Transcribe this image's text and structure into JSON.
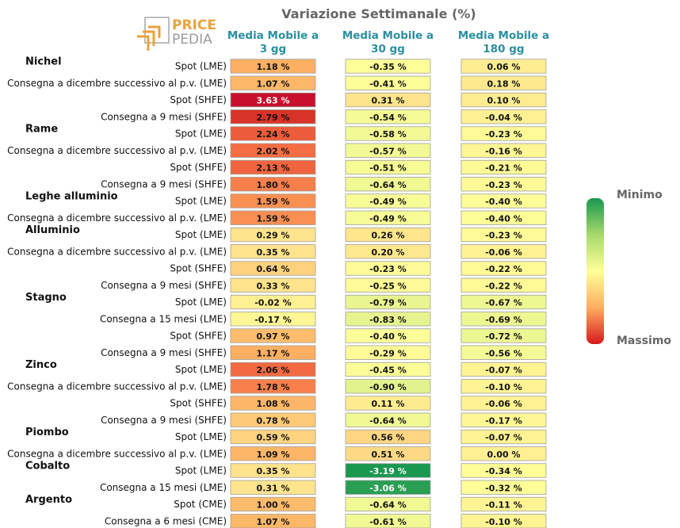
{
  "logo": {
    "line1": "PRICE",
    "line2": "PEDIA"
  },
  "chart_data": {
    "type": "heatmap",
    "title": "Variazione Settimanale (%)",
    "columns": [
      "Media Mobile a 3 gg",
      "Media Mobile a 30 gg",
      "Media Mobile a 180 gg"
    ],
    "colorbar": {
      "top_label": "Minimo",
      "bottom_label": "Massimo"
    },
    "groups": [
      {
        "name": "Nichel",
        "rows": [
          {
            "label": "Spot (LME)",
            "values": [
              1.18,
              -0.35,
              0.06
            ],
            "text": [
              "1.18 %",
              "-0.35 %",
              "0.06 %"
            ]
          },
          {
            "label": "Consegna a dicembre successivo al p.v. (LME)",
            "values": [
              1.07,
              -0.41,
              0.18
            ],
            "text": [
              "1.07 %",
              "-0.41 %",
              "0.18 %"
            ]
          },
          {
            "label": "Spot (SHFE)",
            "values": [
              3.63,
              0.31,
              0.1
            ],
            "text": [
              "3.63 %",
              "0.31 %",
              "0.10 %"
            ]
          },
          {
            "label": "Consegna a 9 mesi (SHFE)",
            "values": [
              2.79,
              -0.54,
              -0.04
            ],
            "text": [
              "2.79 %",
              "-0.54 %",
              "-0.04 %"
            ]
          }
        ]
      },
      {
        "name": "Rame",
        "rows": [
          {
            "label": "Spot (LME)",
            "values": [
              2.24,
              -0.58,
              -0.23
            ],
            "text": [
              "2.24 %",
              "-0.58 %",
              "-0.23 %"
            ]
          },
          {
            "label": "Consegna a dicembre successivo al p.v. (LME)",
            "values": [
              2.02,
              -0.57,
              -0.16
            ],
            "text": [
              "2.02 %",
              "-0.57 %",
              "-0.16 %"
            ]
          },
          {
            "label": "Spot (SHFE)",
            "values": [
              2.13,
              -0.51,
              -0.21
            ],
            "text": [
              "2.13 %",
              "-0.51 %",
              "-0.21 %"
            ]
          },
          {
            "label": "Consegna a 9 mesi (SHFE)",
            "values": [
              1.8,
              -0.64,
              -0.23
            ],
            "text": [
              "1.80 %",
              "-0.64 %",
              "-0.23 %"
            ]
          }
        ]
      },
      {
        "name": "Leghe alluminio",
        "rows": [
          {
            "label": "Spot (LME)",
            "values": [
              1.59,
              -0.49,
              -0.4
            ],
            "text": [
              "1.59 %",
              "-0.49 %",
              "-0.40 %"
            ]
          },
          {
            "label": "Consegna a dicembre successivo al p.v. (LME)",
            "values": [
              1.59,
              -0.49,
              -0.4
            ],
            "text": [
              "1.59 %",
              "-0.49 %",
              "-0.40 %"
            ]
          }
        ]
      },
      {
        "name": "Alluminio",
        "rows": [
          {
            "label": "Spot (LME)",
            "values": [
              0.29,
              0.26,
              -0.23
            ],
            "text": [
              "0.29 %",
              "0.26 %",
              "-0.23 %"
            ]
          },
          {
            "label": "Consegna a dicembre successivo al p.v. (LME)",
            "values": [
              0.35,
              0.2,
              -0.06
            ],
            "text": [
              "0.35 %",
              "0.20 %",
              "-0.06 %"
            ]
          },
          {
            "label": "Spot (SHFE)",
            "values": [
              0.64,
              -0.23,
              -0.22
            ],
            "text": [
              "0.64 %",
              "-0.23 %",
              "-0.22 %"
            ]
          },
          {
            "label": "Consegna a 9 mesi (SHFE)",
            "values": [
              0.33,
              -0.25,
              -0.22
            ],
            "text": [
              "0.33 %",
              "-0.25 %",
              "-0.22 %"
            ]
          }
        ]
      },
      {
        "name": "Stagno",
        "rows": [
          {
            "label": "Spot (LME)",
            "values": [
              -0.02,
              -0.79,
              -0.67
            ],
            "text": [
              "-0.02 %",
              "-0.79 %",
              "-0.67 %"
            ]
          },
          {
            "label": "Consegna a 15 mesi (LME)",
            "values": [
              -0.17,
              -0.83,
              -0.69
            ],
            "text": [
              "-0.17 %",
              "-0.83 %",
              "-0.69 %"
            ]
          },
          {
            "label": "Spot (SHFE)",
            "values": [
              0.97,
              -0.4,
              -0.72
            ],
            "text": [
              "0.97 %",
              "-0.40 %",
              "-0.72 %"
            ]
          },
          {
            "label": "Consegna a 9 mesi (SHFE)",
            "values": [
              1.17,
              -0.29,
              -0.56
            ],
            "text": [
              "1.17 %",
              "-0.29 %",
              "-0.56 %"
            ]
          }
        ]
      },
      {
        "name": "Zinco",
        "rows": [
          {
            "label": "Spot (LME)",
            "values": [
              2.06,
              -0.45,
              -0.07
            ],
            "text": [
              "2.06 %",
              "-0.45 %",
              "-0.07 %"
            ]
          },
          {
            "label": "Consegna a dicembre successivo al p.v. (LME)",
            "values": [
              1.78,
              -0.9,
              -0.1
            ],
            "text": [
              "1.78 %",
              "-0.90 %",
              "-0.10 %"
            ]
          },
          {
            "label": "Spot (SHFE)",
            "values": [
              1.08,
              0.11,
              -0.06
            ],
            "text": [
              "1.08 %",
              "0.11 %",
              "-0.06 %"
            ]
          },
          {
            "label": "Consegna a 9 mesi (SHFE)",
            "values": [
              0.78,
              -0.64,
              -0.17
            ],
            "text": [
              "0.78 %",
              "-0.64 %",
              "-0.17 %"
            ]
          }
        ]
      },
      {
        "name": "Piombo",
        "rows": [
          {
            "label": "Spot (LME)",
            "values": [
              0.59,
              0.56,
              -0.07
            ],
            "text": [
              "0.59 %",
              "0.56 %",
              "-0.07 %"
            ]
          },
          {
            "label": "Consegna a dicembre successivo al p.v. (LME)",
            "values": [
              1.09,
              0.51,
              0.0
            ],
            "text": [
              "1.09 %",
              "0.51 %",
              "0.00 %"
            ]
          }
        ]
      },
      {
        "name": "Cobalto",
        "rows": [
          {
            "label": "Spot (LME)",
            "values": [
              0.35,
              -3.19,
              -0.34
            ],
            "text": [
              "0.35 %",
              "-3.19 %",
              "-0.34 %"
            ]
          },
          {
            "label": "Consegna a 15 mesi (LME)",
            "values": [
              0.31,
              -3.06,
              -0.32
            ],
            "text": [
              "0.31 %",
              "-3.06 %",
              "-0.32 %"
            ]
          }
        ]
      },
      {
        "name": "Argento",
        "rows": [
          {
            "label": "Spot (CME)",
            "values": [
              1.0,
              -0.64,
              -0.11
            ],
            "text": [
              "1.00 %",
              "-0.64 %",
              "-0.11 %"
            ]
          },
          {
            "label": "Consegna a 6 mesi (CME)",
            "values": [
              1.07,
              -0.61,
              -0.1
            ],
            "text": [
              "1.07 %",
              "-0.61 %",
              "-0.10 %"
            ]
          }
        ]
      }
    ],
    "color_scale": {
      "min": -3.19,
      "max": 3.63,
      "stops": [
        "#1a9850",
        "#66bd63",
        "#a6d96a",
        "#d9ef8b",
        "#ffff99",
        "#fee08b",
        "#fdae61",
        "#f46d43",
        "#d73027",
        "#c8102e"
      ]
    },
    "colors": {
      "title": "#666666",
      "column_header": "#2a8fa0",
      "logo_orange": "#e8a33d",
      "logo_grey": "#9a9a9a"
    }
  }
}
